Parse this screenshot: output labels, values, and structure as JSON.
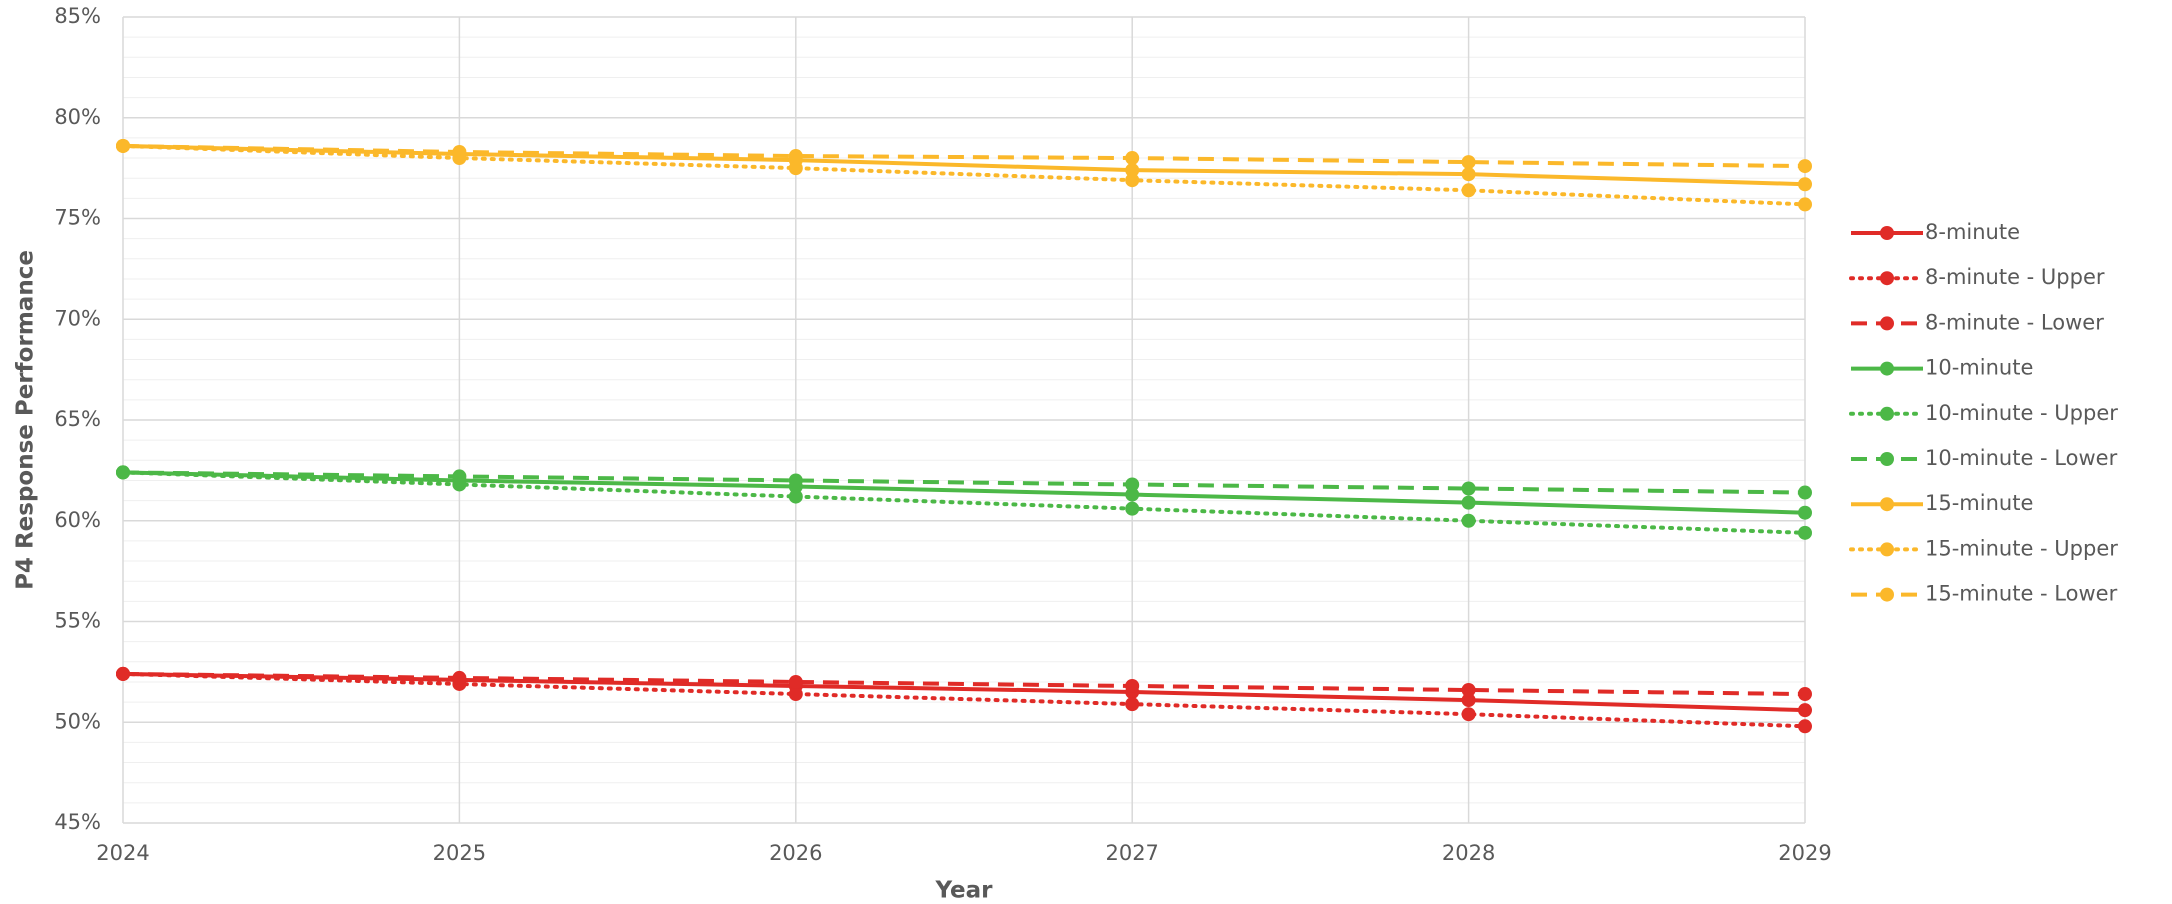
{
  "chart_data": {
    "type": "line",
    "x_label": "Year",
    "y_label": "P4 Response Performance",
    "x": [
      2024,
      2025,
      2026,
      2027,
      2028,
      2029
    ],
    "xlim": [
      2024,
      2029
    ],
    "xticks": [
      2024,
      2025,
      2026,
      2027,
      2028,
      2029
    ],
    "ylim": [
      45,
      85
    ],
    "yticks": [
      {
        "value": 45,
        "label": "45%"
      },
      {
        "value": 50,
        "label": "50%"
      },
      {
        "value": 55,
        "label": "55%"
      },
      {
        "value": 60,
        "label": "60%"
      },
      {
        "value": 65,
        "label": "65%"
      },
      {
        "value": 70,
        "label": "70%"
      },
      {
        "value": 75,
        "label": "75%"
      },
      {
        "value": 80,
        "label": "80%"
      },
      {
        "value": 85,
        "label": "85%"
      }
    ],
    "grid": true,
    "legend": "right",
    "series": [
      {
        "name": "8-minute",
        "color": "#e02b27",
        "dash": "solid",
        "values": [
          52.4,
          52.1,
          51.8,
          51.5,
          51.1,
          50.6
        ]
      },
      {
        "name": "8-minute - Upper",
        "color": "#e02b27",
        "dash": "dotted",
        "values": [
          52.4,
          51.9,
          51.4,
          50.9,
          50.4,
          49.8
        ]
      },
      {
        "name": "8-minute - Lower",
        "color": "#e02b27",
        "dash": "dashed",
        "values": [
          52.4,
          52.2,
          52.0,
          51.8,
          51.6,
          51.4
        ]
      },
      {
        "name": "10-minute",
        "color": "#4cb847",
        "dash": "solid",
        "values": [
          62.4,
          62.0,
          61.7,
          61.3,
          60.9,
          60.4
        ]
      },
      {
        "name": "10-minute - Upper",
        "color": "#4cb847",
        "dash": "dotted",
        "values": [
          62.4,
          61.8,
          61.2,
          60.6,
          60.0,
          59.4
        ]
      },
      {
        "name": "10-minute - Lower",
        "color": "#4cb847",
        "dash": "dashed",
        "values": [
          62.4,
          62.2,
          62.0,
          61.8,
          61.6,
          61.4
        ]
      },
      {
        "name": "15-minute",
        "color": "#fbb82a",
        "dash": "solid",
        "values": [
          78.6,
          78.2,
          77.9,
          77.4,
          77.2,
          76.7
        ]
      },
      {
        "name": "15-minute - Upper",
        "color": "#fbb82a",
        "dash": "dotted",
        "values": [
          78.6,
          78.0,
          77.5,
          76.9,
          76.4,
          75.7
        ]
      },
      {
        "name": "15-minute - Lower",
        "color": "#fbb82a",
        "dash": "dashed",
        "values": [
          78.6,
          78.3,
          78.1,
          78.0,
          77.8,
          77.6
        ]
      }
    ]
  }
}
